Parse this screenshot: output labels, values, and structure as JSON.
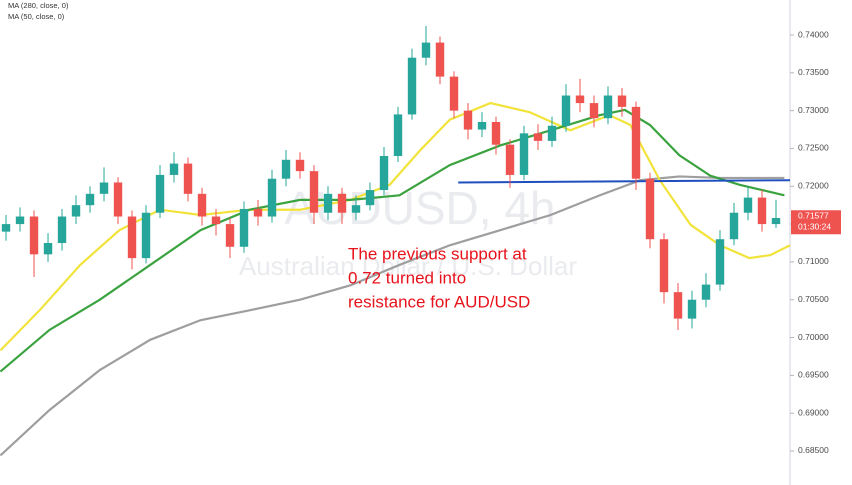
{
  "chart_data": {
    "type": "candlestick",
    "watermark": "AUDUSD, 4h",
    "watermark_subtitle": "Australian Dollar / U.S. Dollar",
    "annotation": [
      "The previous support at",
      "0.72 turned into",
      "resistance for AUD/USD"
    ],
    "annotation_color": "#e8121b",
    "xlim": [
      -0.43,
      56
    ],
    "ylim": [
      0.6805,
      0.74463
    ],
    "yticks": [
      {
        "value": 0.74,
        "label": "0.74000"
      },
      {
        "value": 0.735,
        "label": "0.73500"
      },
      {
        "value": 0.73,
        "label": "0.73000"
      },
      {
        "value": 0.725,
        "label": "0.72500"
      },
      {
        "value": 0.72,
        "label": "0.72000"
      },
      {
        "value": 0.715,
        "label": "0.71500"
      },
      {
        "value": 0.71,
        "label": "0.71000"
      },
      {
        "value": 0.705,
        "label": "0.70500"
      },
      {
        "value": 0.7,
        "label": "0.70000"
      },
      {
        "value": 0.695,
        "label": "0.69500"
      },
      {
        "value": 0.69,
        "label": "0.69000"
      },
      {
        "value": 0.685,
        "label": "0.68500"
      }
    ],
    "last_price": {
      "value": 0.71577,
      "label": "0.71577"
    },
    "countdown": "01:30:24",
    "up_color": "#26a69a",
    "down_color": "#ef5350",
    "candles": {
      "x": [
        0,
        1,
        2,
        3,
        4,
        5,
        6,
        7,
        8,
        9,
        10,
        11,
        12,
        13,
        14,
        15,
        16,
        17,
        18,
        19,
        20,
        21,
        22,
        23,
        24,
        25,
        26,
        27,
        28,
        29,
        30,
        31,
        32,
        33,
        34,
        35,
        36,
        37,
        38,
        39,
        40,
        41,
        42,
        43,
        44,
        45,
        46,
        47,
        48,
        49,
        50,
        51,
        52,
        53,
        54,
        55
      ],
      "open": [
        0.714,
        0.715,
        0.716,
        0.711,
        0.7125,
        0.716,
        0.7175,
        0.719,
        0.7205,
        0.716,
        0.7105,
        0.7165,
        0.7215,
        0.723,
        0.719,
        0.716,
        0.715,
        0.712,
        0.717,
        0.716,
        0.721,
        0.7235,
        0.722,
        0.7165,
        0.719,
        0.7165,
        0.7175,
        0.7195,
        0.724,
        0.7295,
        0.737,
        0.739,
        0.7345,
        0.73,
        0.7275,
        0.7285,
        0.7255,
        0.7215,
        0.727,
        0.726,
        0.728,
        0.732,
        0.731,
        0.729,
        0.732,
        0.7305,
        0.721,
        0.713,
        0.706,
        0.7025,
        0.705,
        0.707,
        0.713,
        0.7165,
        0.7185,
        0.715
      ],
      "high": [
        0.7162,
        0.7172,
        0.7168,
        0.7138,
        0.717,
        0.7188,
        0.72,
        0.7225,
        0.7212,
        0.7168,
        0.7175,
        0.7228,
        0.7245,
        0.7238,
        0.7198,
        0.717,
        0.7158,
        0.718,
        0.7182,
        0.7222,
        0.7248,
        0.7245,
        0.7228,
        0.72,
        0.7198,
        0.7188,
        0.7205,
        0.7252,
        0.7305,
        0.7382,
        0.7412,
        0.7398,
        0.7352,
        0.731,
        0.7298,
        0.7292,
        0.7262,
        0.728,
        0.7282,
        0.7292,
        0.7335,
        0.7342,
        0.732,
        0.7332,
        0.733,
        0.7312,
        0.7218,
        0.7138,
        0.7072,
        0.7062,
        0.7085,
        0.7142,
        0.7178,
        0.72,
        0.7195,
        0.7182
      ],
      "low": [
        0.7128,
        0.714,
        0.708,
        0.71,
        0.7115,
        0.715,
        0.7165,
        0.718,
        0.715,
        0.709,
        0.7098,
        0.7158,
        0.7205,
        0.718,
        0.7148,
        0.7135,
        0.7105,
        0.7112,
        0.7148,
        0.7152,
        0.72,
        0.721,
        0.715,
        0.7155,
        0.715,
        0.7155,
        0.7168,
        0.7188,
        0.7232,
        0.7288,
        0.736,
        0.7335,
        0.729,
        0.7262,
        0.7265,
        0.7242,
        0.7198,
        0.7208,
        0.7248,
        0.7252,
        0.7272,
        0.7298,
        0.7278,
        0.7282,
        0.7292,
        0.7195,
        0.7118,
        0.7045,
        0.701,
        0.7012,
        0.704,
        0.7062,
        0.7122,
        0.7155,
        0.714,
        0.7145
      ],
      "close": [
        0.715,
        0.716,
        0.711,
        0.7125,
        0.716,
        0.7175,
        0.719,
        0.7205,
        0.716,
        0.7105,
        0.7165,
        0.7215,
        0.723,
        0.719,
        0.716,
        0.715,
        0.712,
        0.717,
        0.716,
        0.721,
        0.7235,
        0.722,
        0.7165,
        0.719,
        0.7165,
        0.7175,
        0.7195,
        0.724,
        0.7295,
        0.737,
        0.739,
        0.7345,
        0.73,
        0.7275,
        0.7285,
        0.7255,
        0.7215,
        0.727,
        0.726,
        0.728,
        0.732,
        0.731,
        0.729,
        0.732,
        0.7305,
        0.721,
        0.713,
        0.706,
        0.7025,
        0.705,
        0.707,
        0.713,
        0.7165,
        0.7185,
        0.715,
        0.7158
      ]
    },
    "series": [
      {
        "name": "MA (280, close, 0)",
        "color": "#9e9e9e",
        "x": [
          -0.4,
          3.1,
          6.7,
          10.3,
          13.9,
          17.4,
          21,
          24.6,
          28.1,
          31.7,
          35.3,
          38.9,
          42.4,
          45.3,
          48.1,
          51,
          55.6
        ],
        "values": [
          0.6844,
          0.6904,
          0.6957,
          0.6997,
          0.7023,
          0.7036,
          0.705,
          0.7069,
          0.7096,
          0.7122,
          0.7142,
          0.7162,
          0.7188,
          0.7208,
          0.7213,
          0.7211,
          0.7211
        ]
      },
      {
        "name": "MA (50, close, 0)",
        "color": "#f2e33a",
        "x": [
          -0.4,
          2.4,
          5.3,
          8.1,
          11,
          13.9,
          17.4,
          21,
          24.6,
          27.4,
          29.6,
          31.7,
          34.6,
          37.4,
          40.3,
          43.1,
          44.6,
          46.7,
          48.9,
          51,
          53.1,
          54.6,
          56
        ],
        "values": [
          0.6983,
          0.7036,
          0.7096,
          0.7142,
          0.7169,
          0.7162,
          0.7169,
          0.7169,
          0.7182,
          0.7202,
          0.7248,
          0.7288,
          0.731,
          0.7298,
          0.7274,
          0.7294,
          0.7281,
          0.7208,
          0.7149,
          0.7122,
          0.7105,
          0.7109,
          0.7122
        ]
      },
      {
        "color": "#3aa33f",
        "x": [
          -0.4,
          3.1,
          6.7,
          10.3,
          13.9,
          17.4,
          21,
          24.6,
          28.1,
          31.7,
          35.3,
          38.9,
          42.4,
          44.2,
          46,
          48.1,
          50.3,
          52.4,
          55.6
        ],
        "values": [
          0.6955,
          0.701,
          0.705,
          0.7096,
          0.7142,
          0.7169,
          0.7182,
          0.7182,
          0.7188,
          0.7228,
          0.7254,
          0.7274,
          0.7294,
          0.7301,
          0.7281,
          0.7241,
          0.7214,
          0.7202,
          0.7188
        ]
      },
      {
        "color": "#1f4fbf",
        "x": [
          32.3,
          56
        ],
        "values": [
          0.7205,
          0.7208
        ]
      }
    ]
  }
}
